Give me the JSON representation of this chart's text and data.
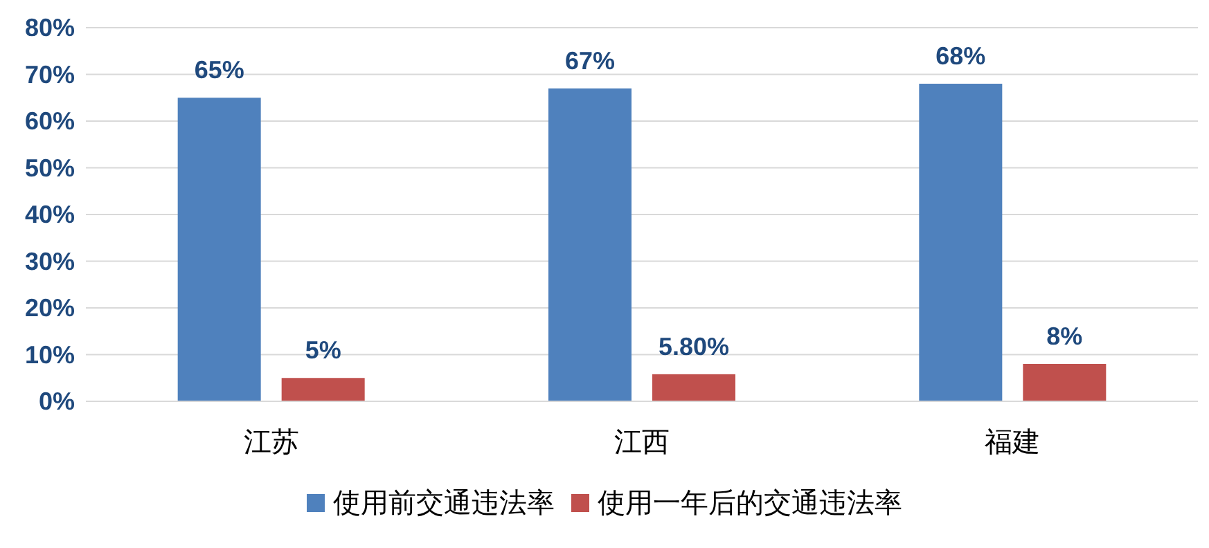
{
  "chart_data": {
    "type": "bar",
    "categories": [
      "江苏",
      "江西",
      "福建"
    ],
    "series": [
      {
        "name": "使用前交通违法率",
        "color": "#4f81bd",
        "values": [
          65,
          67,
          68
        ],
        "value_labels": [
          "65%",
          "67%",
          "68%"
        ]
      },
      {
        "name": "使用一年后的交通违法率",
        "color": "#c0504d",
        "values": [
          5,
          5.8,
          8
        ],
        "value_labels": [
          "5%",
          "5.80%",
          "8%"
        ]
      }
    ],
    "ylim": [
      0,
      80
    ],
    "yticks": [
      {
        "value": 0,
        "label": "0%"
      },
      {
        "value": 10,
        "label": "10%"
      },
      {
        "value": 20,
        "label": "20%"
      },
      {
        "value": 30,
        "label": "30%"
      },
      {
        "value": 40,
        "label": "40%"
      },
      {
        "value": 50,
        "label": "50%"
      },
      {
        "value": 60,
        "label": "60%"
      },
      {
        "value": 70,
        "label": "70%"
      },
      {
        "value": 80,
        "label": "80%"
      }
    ],
    "grid": "y",
    "legend": "bottom"
  }
}
